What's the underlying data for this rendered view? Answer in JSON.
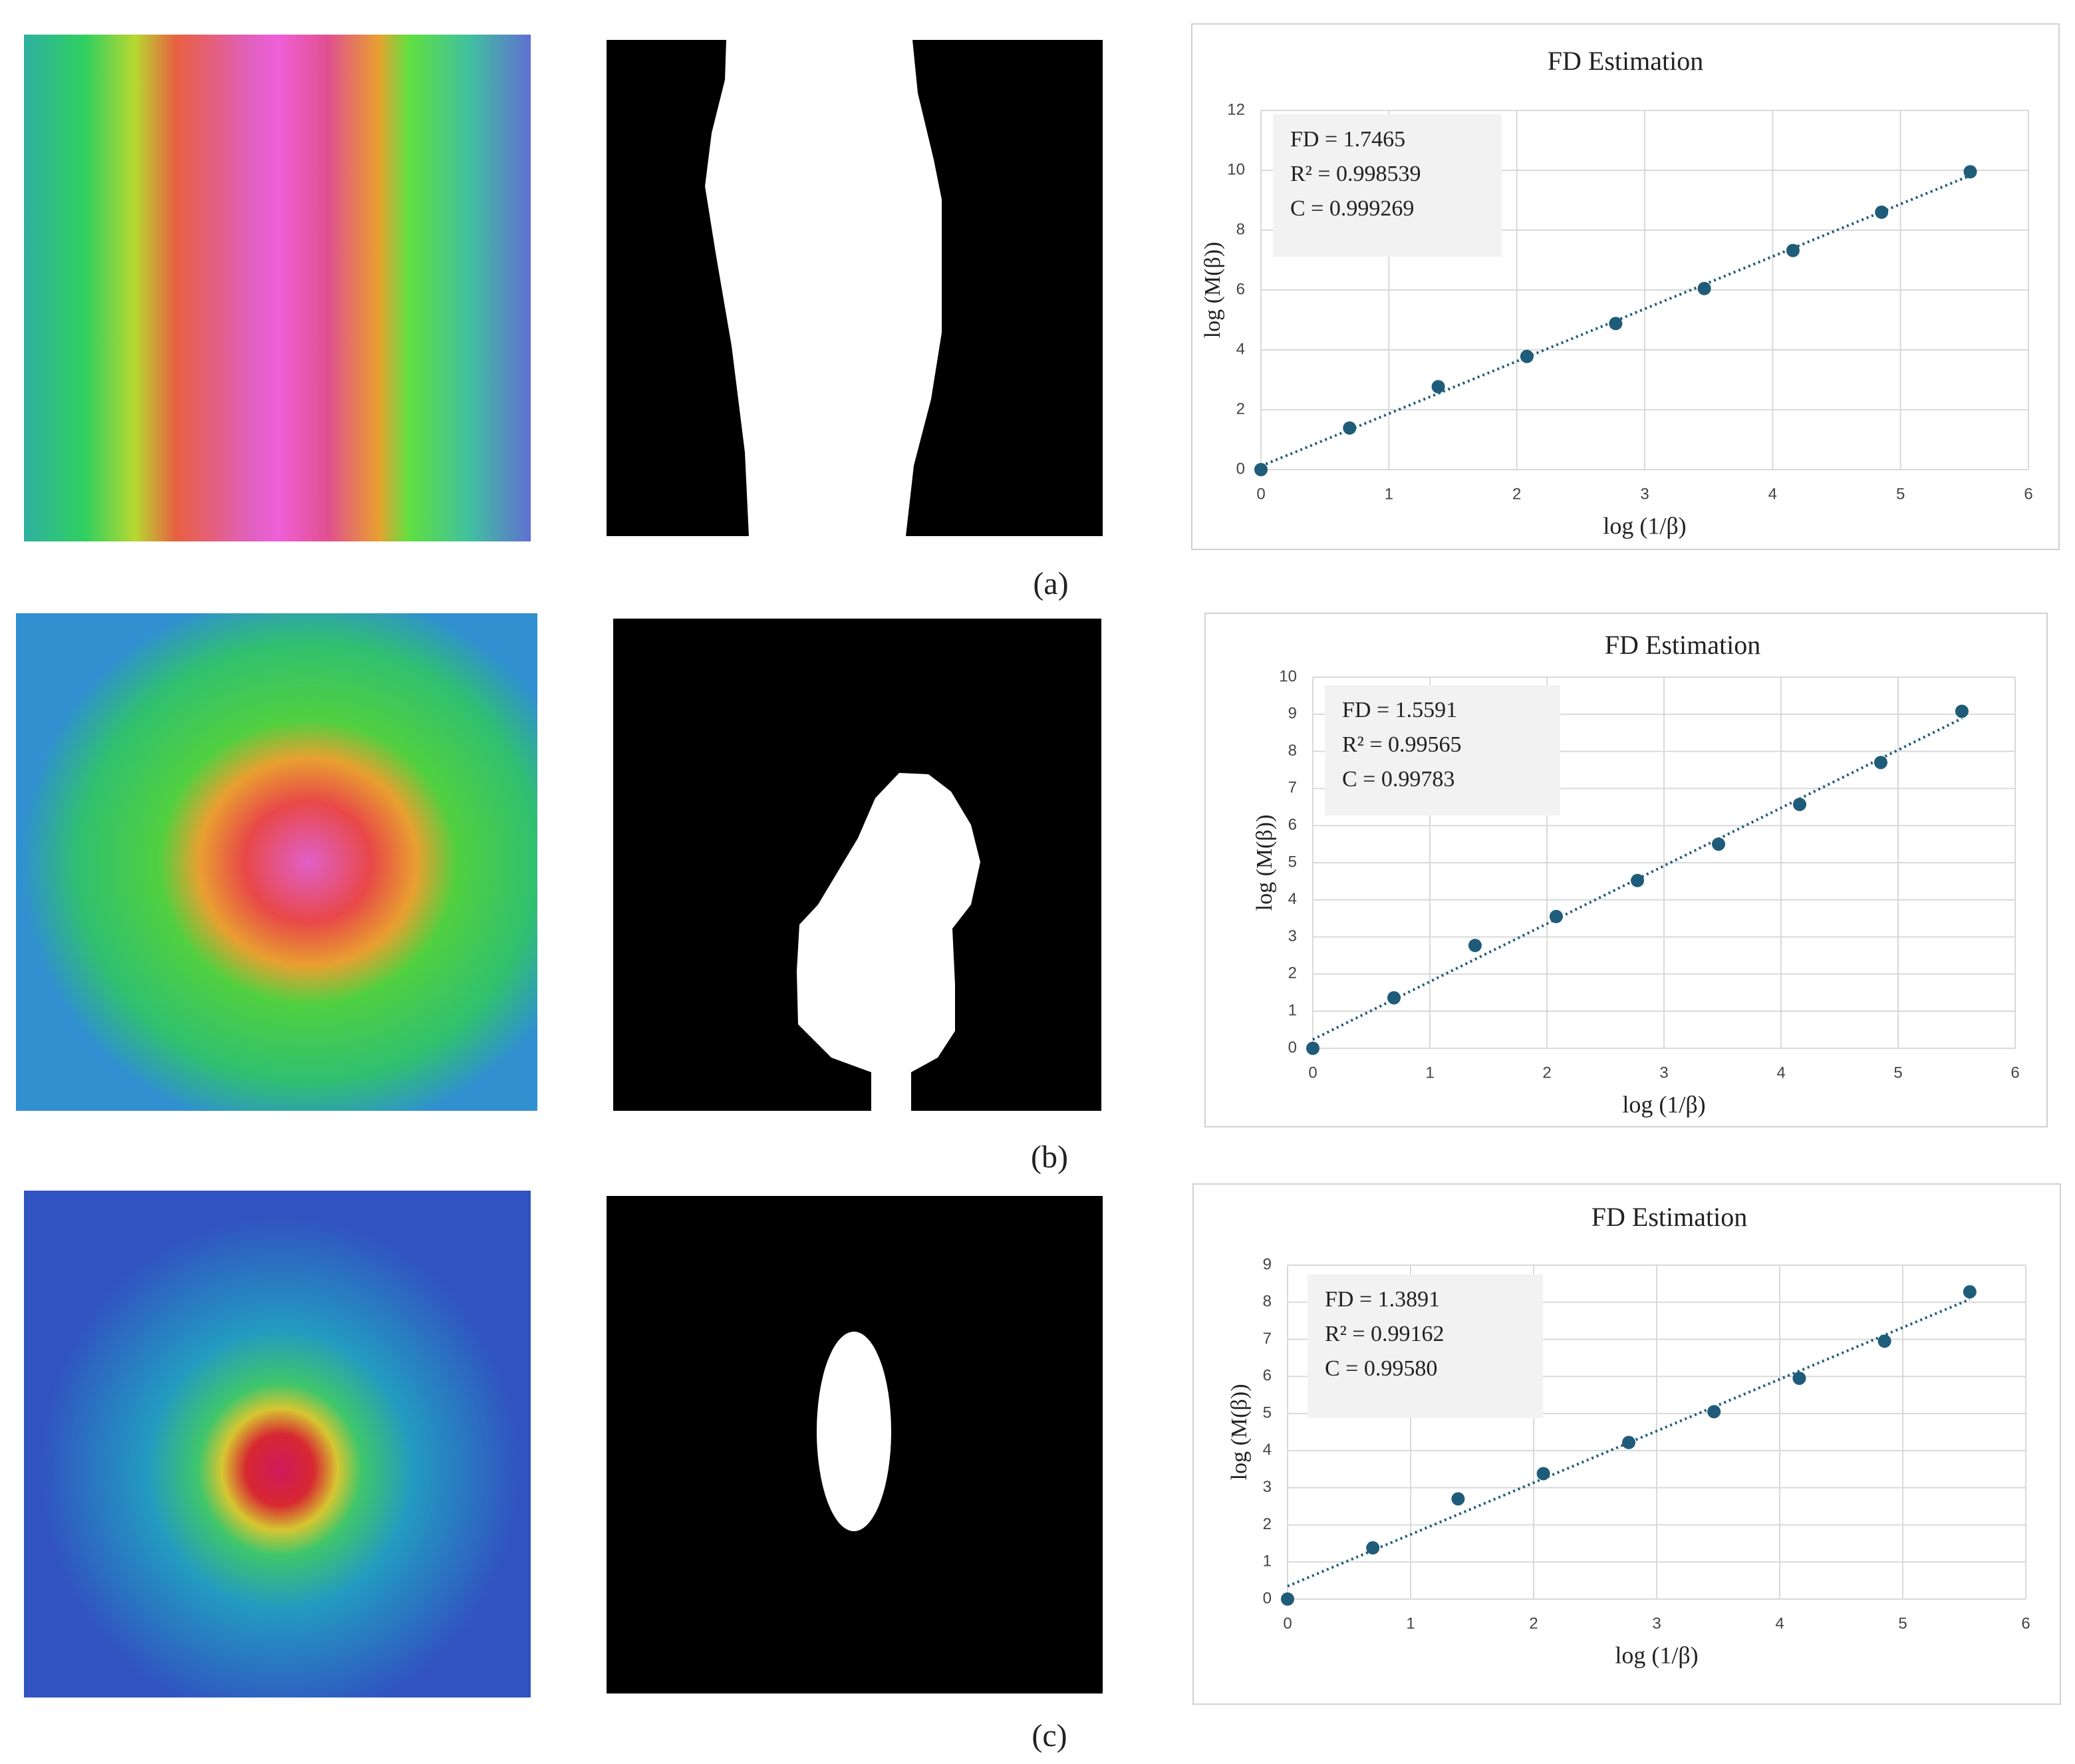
{
  "panel_labels": [
    "(a)",
    "(b)",
    "(c)"
  ],
  "chart_data": [
    {
      "type": "scatter",
      "title": "FD Estimation",
      "x_label": "log (1/β)",
      "y_label": "log (M(β))",
      "annotations": [
        "FD = 1.7465",
        "R² = 0.998539",
        "C = 0.999269"
      ],
      "x": [
        0,
        0.693,
        1.386,
        2.079,
        2.773,
        3.466,
        4.159,
        4.852,
        5.545
      ],
      "series": [
        {
          "name": "log (M(β))",
          "color": "#1f5c7a",
          "values": [
            0,
            1.39,
            2.77,
            3.78,
            4.88,
            6.05,
            7.32,
            8.6,
            9.95
          ]
        }
      ],
      "xlim": [
        0,
        6
      ],
      "xticks": [
        0,
        1,
        2,
        3,
        4,
        5,
        6
      ],
      "ylim": [
        0,
        12
      ],
      "yticks": [
        0,
        2,
        4,
        6,
        8,
        10,
        12
      ],
      "grid": true,
      "trendline": true
    },
    {
      "type": "scatter",
      "title": "FD Estimation",
      "x_label": "log (1/β)",
      "y_label": "log (M(β))",
      "annotations": [
        "FD = 1.5591",
        "R² = 0.99565",
        "C = 0.99783"
      ],
      "x": [
        0,
        0.693,
        1.386,
        2.079,
        2.773,
        3.466,
        4.159,
        4.852,
        5.545
      ],
      "series": [
        {
          "name": "log (M(β))",
          "color": "#1f5c7a",
          "values": [
            0,
            1.36,
            2.77,
            3.55,
            4.52,
            5.5,
            6.57,
            7.7,
            9.08
          ]
        }
      ],
      "xlim": [
        0,
        6
      ],
      "xticks": [
        0,
        1,
        2,
        3,
        4,
        5,
        6
      ],
      "ylim": [
        0,
        10
      ],
      "yticks": [
        0,
        1,
        2,
        3,
        4,
        5,
        6,
        7,
        8,
        9,
        10
      ],
      "grid": true,
      "trendline": true
    },
    {
      "type": "scatter",
      "title": "FD Estimation",
      "x_label": "log (1/β)",
      "y_label": "log (M(β))",
      "annotations": [
        "FD = 1.3891",
        "R² = 0.99162",
        "C = 0.99580"
      ],
      "x": [
        0,
        0.693,
        1.386,
        2.079,
        2.773,
        3.466,
        4.159,
        4.852,
        5.545
      ],
      "series": [
        {
          "name": "log (M(β))",
          "color": "#1f5c7a",
          "values": [
            0,
            1.38,
            2.7,
            3.38,
            4.22,
            5.05,
            5.95,
            6.95,
            8.28
          ]
        }
      ],
      "xlim": [
        0,
        6
      ],
      "xticks": [
        0,
        1,
        2,
        3,
        4,
        5,
        6
      ],
      "ylim": [
        0,
        9
      ],
      "yticks": [
        0,
        1,
        2,
        3,
        4,
        5,
        6,
        7,
        8,
        9
      ],
      "grid": true,
      "trendline": true
    }
  ]
}
